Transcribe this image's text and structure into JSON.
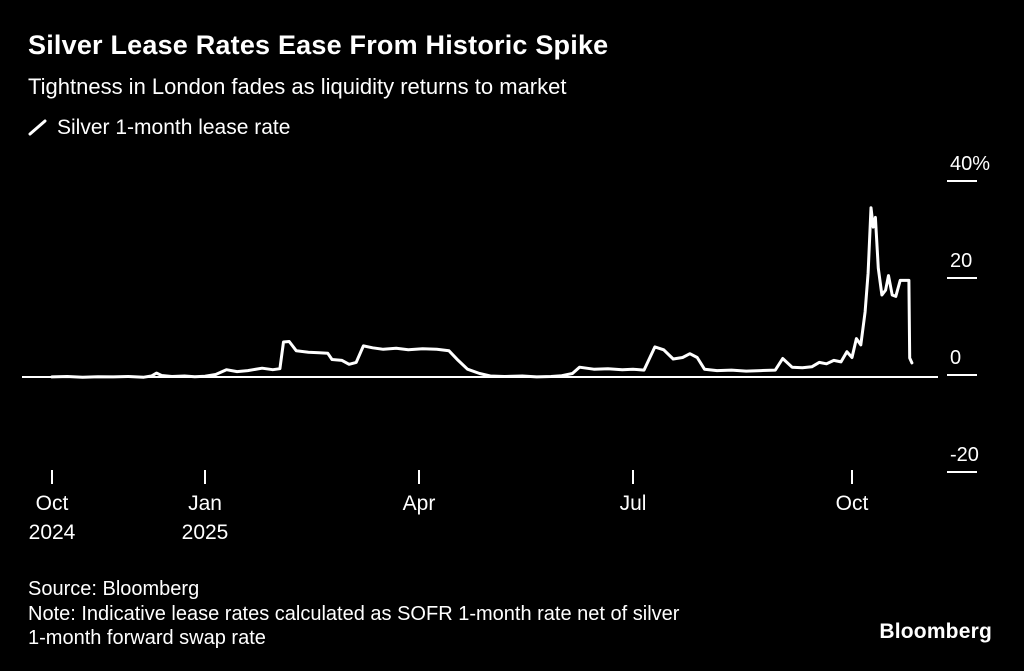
{
  "header": {
    "title": "Silver Lease Rates Ease From Historic Spike",
    "subtitle": "Tightness in London fades as liquidity returns to market"
  },
  "legend": {
    "label": "Silver 1-month lease rate",
    "swatch_color": "#ffffff"
  },
  "footer": {
    "source": "Source: Bloomberg",
    "note_line1": "Note: Indicative lease rates calculated as SOFR 1-month rate net of silver",
    "note_line2": "1-month forward swap rate",
    "brand": "Bloomberg"
  },
  "colors": {
    "background": "#000000",
    "line": "#ffffff",
    "text": "#ffffff"
  },
  "chart_data": {
    "type": "line",
    "title": "Silver Lease Rates Ease From Historic Spike",
    "subtitle": "Tightness in London fades as liquidity returns to market",
    "ylabel": "Silver 1-month lease rate (%)",
    "xlabel": "",
    "x_unit": "months since Oct 2024",
    "ylim": [
      -25,
      42
    ],
    "grid": false,
    "legend_position": "top-left",
    "baseline": 0,
    "y_ticks": [
      {
        "v": 40,
        "label": "40%"
      },
      {
        "v": 20,
        "label": "20"
      },
      {
        "v": 0,
        "label": "0"
      },
      {
        "v": -20,
        "label": "-20"
      }
    ],
    "x_ticks": [
      {
        "m": 0,
        "label": "Oct",
        "sublabel": "2024"
      },
      {
        "m": 3,
        "label": "Jan",
        "sublabel": "2025"
      },
      {
        "m": 6,
        "label": "Apr",
        "sublabel": ""
      },
      {
        "m": 9,
        "label": "Jul",
        "sublabel": ""
      },
      {
        "m": 12,
        "label": "Oct",
        "sublabel": ""
      }
    ],
    "series": [
      {
        "name": "Silver 1-month lease rate",
        "color": "#ffffff",
        "points": [
          [
            0,
            -0.4
          ],
          [
            0.3,
            -0.3
          ],
          [
            0.6,
            -0.45
          ],
          [
            0.9,
            -0.35
          ],
          [
            1.2,
            -0.4
          ],
          [
            1.5,
            -0.3
          ],
          [
            1.8,
            -0.45
          ],
          [
            1.95,
            -0.2
          ],
          [
            2.05,
            0.4
          ],
          [
            2.15,
            -0.1
          ],
          [
            2.35,
            -0.3
          ],
          [
            2.6,
            -0.2
          ],
          [
            2.8,
            -0.35
          ],
          [
            3.0,
            -0.25
          ],
          [
            3.15,
            0.1
          ],
          [
            3.3,
            1.1
          ],
          [
            3.45,
            0.7
          ],
          [
            3.6,
            0.9
          ],
          [
            3.8,
            1.4
          ],
          [
            3.95,
            1.1
          ],
          [
            4.05,
            1.3
          ],
          [
            4.1,
            6.8
          ],
          [
            4.18,
            6.9
          ],
          [
            4.28,
            5.0
          ],
          [
            4.45,
            4.7
          ],
          [
            4.6,
            4.6
          ],
          [
            4.72,
            4.5
          ],
          [
            4.78,
            3.2
          ],
          [
            4.92,
            3.0
          ],
          [
            5.02,
            2.2
          ],
          [
            5.12,
            2.6
          ],
          [
            5.22,
            6.0
          ],
          [
            5.35,
            5.6
          ],
          [
            5.5,
            5.3
          ],
          [
            5.68,
            5.5
          ],
          [
            5.85,
            5.2
          ],
          [
            6.05,
            5.4
          ],
          [
            6.25,
            5.3
          ],
          [
            6.42,
            5.0
          ],
          [
            6.55,
            3.0
          ],
          [
            6.68,
            1.2
          ],
          [
            6.85,
            0.3
          ],
          [
            7.0,
            -0.2
          ],
          [
            7.2,
            -0.3
          ],
          [
            7.45,
            -0.2
          ],
          [
            7.65,
            -0.4
          ],
          [
            7.85,
            -0.3
          ],
          [
            8.0,
            -0.15
          ],
          [
            8.15,
            0.3
          ],
          [
            8.25,
            1.6
          ],
          [
            8.45,
            1.2
          ],
          [
            8.65,
            1.3
          ],
          [
            8.85,
            1.1
          ],
          [
            9.0,
            1.2
          ],
          [
            9.15,
            1.0
          ],
          [
            9.3,
            5.8
          ],
          [
            9.42,
            5.2
          ],
          [
            9.55,
            3.3
          ],
          [
            9.68,
            3.6
          ],
          [
            9.78,
            4.4
          ],
          [
            9.88,
            3.6
          ],
          [
            9.98,
            1.2
          ],
          [
            10.15,
            0.9
          ],
          [
            10.35,
            1.0
          ],
          [
            10.55,
            0.8
          ],
          [
            10.75,
            0.9
          ],
          [
            10.95,
            1.0
          ],
          [
            11.05,
            3.4
          ],
          [
            11.18,
            1.6
          ],
          [
            11.32,
            1.5
          ],
          [
            11.45,
            1.7
          ],
          [
            11.55,
            2.6
          ],
          [
            11.65,
            2.3
          ],
          [
            11.75,
            3.0
          ],
          [
            11.85,
            2.7
          ],
          [
            11.93,
            4.8
          ],
          [
            12.0,
            3.6
          ],
          [
            12.06,
            7.5
          ],
          [
            12.12,
            6.2
          ],
          [
            12.18,
            13.0
          ],
          [
            12.22,
            21.0
          ],
          [
            12.26,
            34.5
          ],
          [
            12.29,
            30.5
          ],
          [
            12.32,
            32.5
          ],
          [
            12.36,
            22.0
          ],
          [
            12.41,
            16.5
          ],
          [
            12.46,
            17.5
          ],
          [
            12.5,
            20.5
          ],
          [
            12.55,
            16.5
          ],
          [
            12.6,
            16.2
          ],
          [
            12.66,
            19.5
          ],
          [
            12.72,
            19.5
          ],
          [
            12.78,
            19.5
          ],
          [
            12.79,
            3.5
          ],
          [
            12.82,
            2.5
          ]
        ]
      }
    ]
  }
}
